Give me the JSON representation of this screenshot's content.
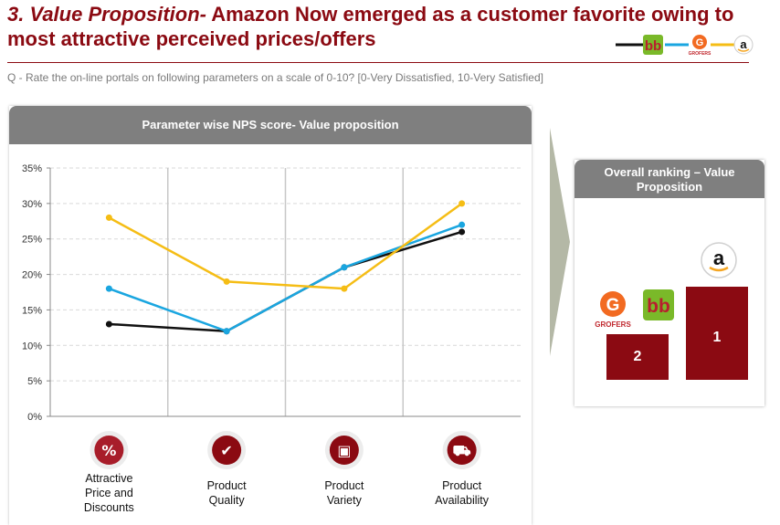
{
  "header": {
    "title_lead": "3. Value Proposition-",
    "title_rest": " Amazon Now emerged as a customer favorite owing to most attractive perceived prices/offers",
    "question": "Q - Rate the on-line portals on following parameters on a scale of 0-10?  [0-Very Dissatisfied, 10-Very Satisfied]"
  },
  "legend": [
    {
      "brand": "bigbasket",
      "color": "#111111",
      "icon": "bigbasket-logo-icon"
    },
    {
      "brand": "grofers",
      "color": "#1aa6e0",
      "icon": "grofers-logo-icon",
      "logo_text": "GROFERS"
    },
    {
      "brand": "amazon",
      "color": "#f5bd15",
      "icon": "amazon-logo-icon"
    }
  ],
  "chart_data": {
    "type": "line",
    "title": "Parameter wise NPS score- Value proposition",
    "categories": [
      "Attractive Price and Discounts",
      "Product Quality",
      "Product Variety",
      "Product Availability"
    ],
    "category_lines": [
      [
        "Attractive",
        "Price and",
        "Discounts"
      ],
      [
        "Product",
        "Quality"
      ],
      [
        "Product",
        "Variety"
      ],
      [
        "Product",
        "Availability"
      ]
    ],
    "category_icons": [
      "discount-tag-icon",
      "quality-check-icon",
      "variety-box-icon",
      "delivery-cart-icon"
    ],
    "yticks": [
      "0%",
      "5%",
      "10%",
      "15%",
      "20%",
      "25%",
      "30%",
      "35%"
    ],
    "ylim": [
      0,
      35
    ],
    "series": [
      {
        "brand": "bigbasket",
        "color": "#111111",
        "values": [
          13,
          12,
          21,
          26
        ]
      },
      {
        "brand": "grofers",
        "color": "#1aa6e0",
        "values": [
          18,
          12,
          21,
          27
        ]
      },
      {
        "brand": "amazon",
        "color": "#f5bd15",
        "values": [
          28,
          19,
          18,
          30
        ]
      }
    ]
  },
  "ranking": {
    "title_line1": "Overall ranking – Value",
    "title_line2": "Proposition",
    "bars": [
      {
        "rank": "2",
        "brands": [
          "grofers",
          "bigbasket"
        ],
        "logo_text": "GROFERS"
      },
      {
        "rank": "1",
        "brands": [
          "amazon"
        ]
      }
    ]
  }
}
